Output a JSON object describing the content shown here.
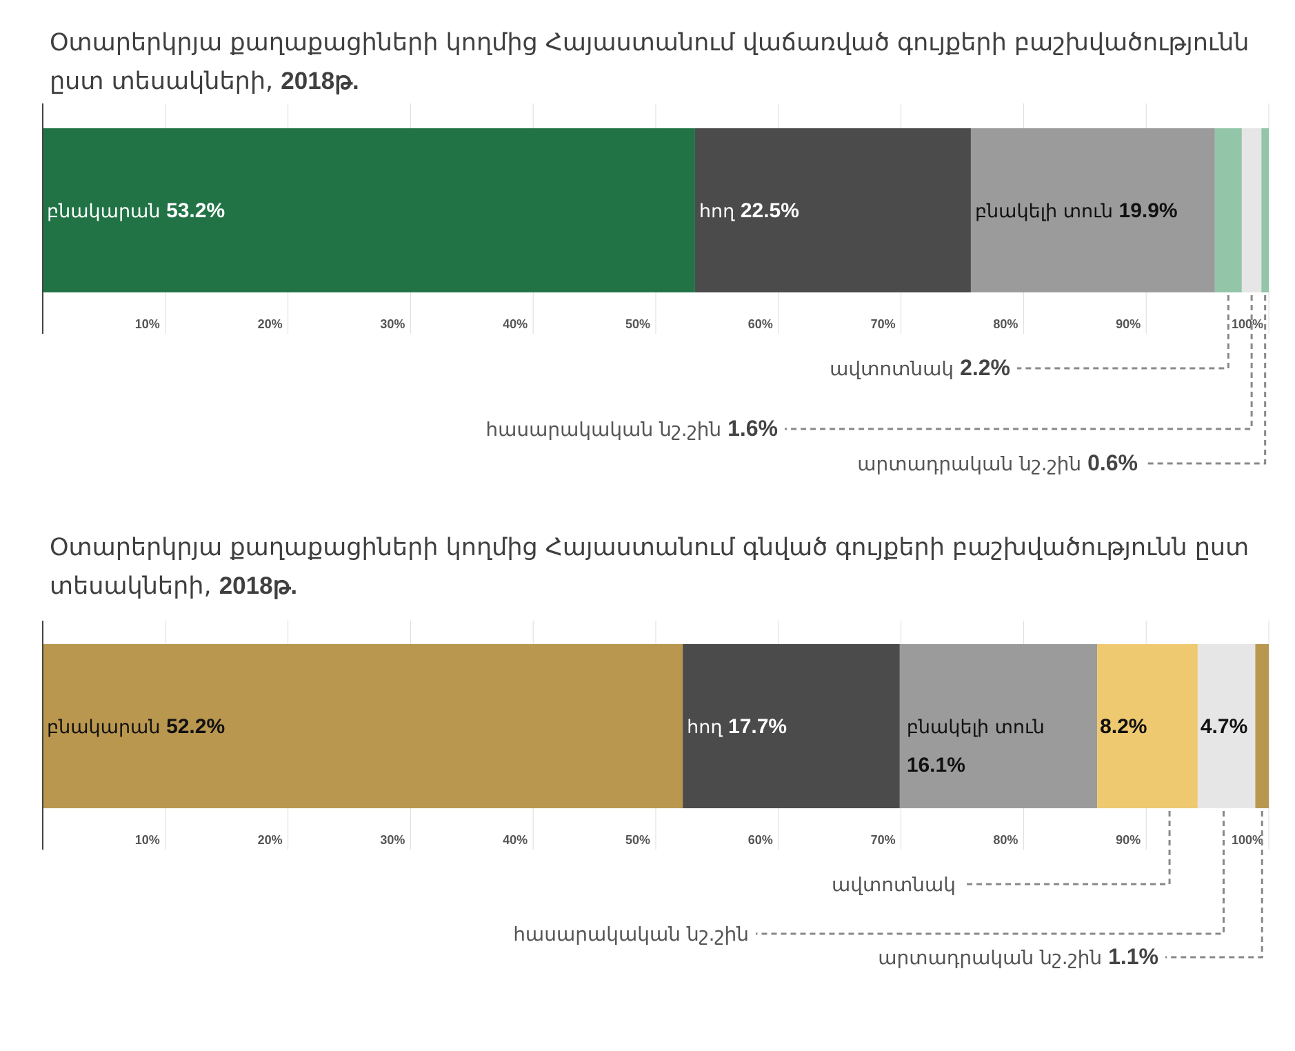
{
  "charts": [
    {
      "title": "Օտարերկրյա քաղաքացիների կողմից Հայաստանում վաճառված գույքերի բաշխվածությունն ըստ տեսակների,",
      "title_year": "2018թ."
    },
    {
      "title": "Օտարերկրյա քաղաքացիների կողմից Հայաստանում գնված գույքերի բաշխվածությունն ըստ տեսակների,",
      "title_year": "2018թ."
    }
  ],
  "chart_data": [
    {
      "type": "bar",
      "orientation": "horizontal-stacked-100",
      "title": "Օտարերկրյա քաղաքացիների կողմից Հայաստանում վաճառված գույքերի բաշխվածությունն ըստ տեսակների, 2018թ.",
      "xlim": [
        0,
        100
      ],
      "xticks": [
        "10%",
        "20%",
        "30%",
        "40%",
        "50%",
        "60%",
        "70%",
        "80%",
        "90%",
        "100%"
      ],
      "grid": true,
      "series": [
        {
          "name": "բնակարան",
          "value": 53.2,
          "value_label": "53.2%",
          "color": "#217346",
          "text_color": "#ffffff",
          "label_mode": "inside"
        },
        {
          "name": "հող",
          "value": 22.5,
          "value_label": "22.5%",
          "color": "#4b4b4b",
          "text_color": "#ffffff",
          "label_mode": "inside"
        },
        {
          "name": "բնակելի տուն",
          "value": 19.9,
          "value_label": "19.9%",
          "color": "#9b9b9b",
          "text_color": "#111111",
          "label_mode": "inside"
        },
        {
          "name": "ավտոտնակ",
          "value": 2.2,
          "value_label": "2.2%",
          "color": "#93c5a8",
          "text_color": "#111111",
          "label_mode": "callout"
        },
        {
          "name": "հասարակական նշ.շին",
          "value": 1.6,
          "value_label": "1.6%",
          "color": "#e6e6e6",
          "text_color": "#111111",
          "label_mode": "callout"
        },
        {
          "name": "արտադրական նշ.շին",
          "value": 0.6,
          "value_label": "0.6%",
          "color": "#93c5a8",
          "text_color": "#111111",
          "label_mode": "callout"
        }
      ]
    },
    {
      "type": "bar",
      "orientation": "horizontal-stacked-100",
      "title": "Օտարերկրյա քաղաքացիների կողմից Հայաստանում գնված գույքերի բաշխվածությունն ըստ տեսակների, 2018թ.",
      "xlim": [
        0,
        100
      ],
      "xticks": [
        "10%",
        "20%",
        "30%",
        "40%",
        "50%",
        "60%",
        "70%",
        "80%",
        "90%",
        "100%"
      ],
      "grid": true,
      "series": [
        {
          "name": "բնակարան",
          "value": 52.2,
          "value_label": "52.2%",
          "color": "#b9974e",
          "text_color": "#111111",
          "label_mode": "inside"
        },
        {
          "name": "հող",
          "value": 17.7,
          "value_label": "17.7%",
          "color": "#4b4b4b",
          "text_color": "#ffffff",
          "label_mode": "inside"
        },
        {
          "name": "բնակելի տուն",
          "value": 16.1,
          "value_label": "16.1%",
          "color": "#9b9b9b",
          "text_color": "#111111",
          "label_mode": "inside-wrap"
        },
        {
          "name": "ավտոտնակ",
          "value": 8.2,
          "value_label": "8.2%",
          "color": "#efc970",
          "text_color": "#111111",
          "label_mode": "value-inside-name-callout"
        },
        {
          "name": "հասարակական նշ.շին",
          "value": 4.7,
          "value_label": "4.7%",
          "color": "#e6e6e6",
          "text_color": "#111111",
          "label_mode": "value-inside-name-callout"
        },
        {
          "name": "արտադրական նշ.շին",
          "value": 1.1,
          "value_label": "1.1%",
          "color": "#b9974e",
          "text_color": "#111111",
          "label_mode": "callout"
        }
      ]
    }
  ]
}
